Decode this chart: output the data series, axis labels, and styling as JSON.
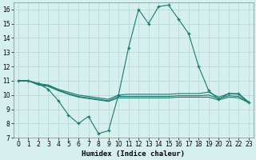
{
  "xlabel": "Humidex (Indice chaleur)",
  "background_color": "#d6f0ef",
  "grid_color": "#b8dbd8",
  "line_color": "#1a7a6e",
  "xlim": [
    -0.5,
    23.5
  ],
  "ylim": [
    7,
    16.5
  ],
  "yticks": [
    7,
    8,
    9,
    10,
    11,
    12,
    13,
    14,
    15,
    16
  ],
  "xticks": [
    0,
    1,
    2,
    3,
    4,
    5,
    6,
    7,
    8,
    9,
    10,
    11,
    12,
    13,
    14,
    15,
    16,
    17,
    18,
    19,
    20,
    21,
    22,
    23
  ],
  "series": [
    {
      "x": [
        0,
        1,
        2,
        3,
        4,
        5,
        6,
        7,
        8,
        9,
        10,
        11,
        12,
        13,
        14,
        15,
        16,
        17,
        18,
        19,
        20,
        21,
        22,
        23
      ],
      "y": [
        11,
        11,
        10.8,
        10.4,
        9.6,
        8.6,
        8.0,
        8.5,
        7.3,
        7.5,
        10.0,
        13.3,
        16.0,
        15.0,
        16.2,
        16.3,
        15.3,
        14.3,
        12.0,
        10.3,
        9.7,
        10.1,
        10.1,
        9.5
      ],
      "marker": "+"
    },
    {
      "x": [
        0,
        1,
        2,
        3,
        4,
        5,
        6,
        7,
        8,
        9,
        10,
        11,
        12,
        13,
        14,
        15,
        16,
        17,
        18,
        19,
        20,
        21,
        22,
        23
      ],
      "y": [
        11,
        11,
        10.8,
        10.7,
        10.4,
        10.2,
        10.0,
        9.9,
        9.8,
        9.7,
        10.0,
        10.05,
        10.05,
        10.05,
        10.05,
        10.05,
        10.1,
        10.1,
        10.1,
        10.2,
        9.85,
        10.1,
        10.05,
        9.5
      ],
      "marker": null
    },
    {
      "x": [
        0,
        1,
        2,
        3,
        4,
        5,
        6,
        7,
        8,
        9,
        10,
        11,
        12,
        13,
        14,
        15,
        16,
        17,
        18,
        19,
        20,
        21,
        22,
        23
      ],
      "y": [
        11,
        11,
        10.75,
        10.65,
        10.35,
        10.1,
        9.9,
        9.8,
        9.7,
        9.6,
        9.9,
        9.9,
        9.9,
        9.9,
        9.9,
        9.9,
        9.95,
        9.95,
        9.95,
        10.0,
        9.75,
        9.95,
        9.9,
        9.5
      ],
      "marker": null
    },
    {
      "x": [
        0,
        1,
        2,
        3,
        4,
        5,
        6,
        7,
        8,
        9,
        10,
        11,
        12,
        13,
        14,
        15,
        16,
        17,
        18,
        19,
        20,
        21,
        22,
        23
      ],
      "y": [
        11,
        11,
        10.7,
        10.6,
        10.3,
        10.05,
        9.85,
        9.75,
        9.65,
        9.55,
        9.8,
        9.8,
        9.8,
        9.8,
        9.8,
        9.8,
        9.85,
        9.85,
        9.85,
        9.85,
        9.65,
        9.85,
        9.8,
        9.45
      ],
      "marker": null
    }
  ]
}
